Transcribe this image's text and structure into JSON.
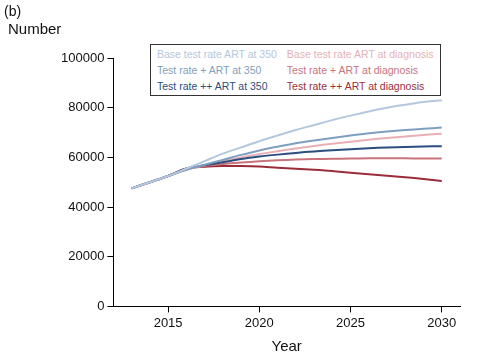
{
  "chart_data": {
    "type": "line",
    "title": "(b)",
    "y_label": "Number",
    "x_label": "Year",
    "x": [
      2013,
      2014,
      2015,
      2016,
      2017,
      2018,
      2019,
      2020,
      2021,
      2022,
      2023,
      2024,
      2025,
      2026,
      2027,
      2028,
      2029,
      2030
    ],
    "series": [
      {
        "name": "Base test rate ART at 350",
        "color": "#b3c8de",
        "values": [
          47500,
          50000,
          52500,
          55500,
          58500,
          61500,
          64000,
          66500,
          68800,
          71000,
          73000,
          75000,
          76800,
          78500,
          80000,
          81200,
          82300,
          83000
        ]
      },
      {
        "name": "Test rate + ART at 350",
        "color": "#7f9fc0",
        "values": [
          47500,
          50000,
          52500,
          55000,
          57000,
          59000,
          61000,
          62800,
          64300,
          65700,
          66800,
          67800,
          68800,
          69700,
          70400,
          71000,
          71500,
          72000
        ]
      },
      {
        "name": "Test rate ++ ART at 350",
        "color": "#2b4e7e",
        "values": [
          47500,
          50000,
          52500,
          55500,
          56800,
          58000,
          59300,
          60300,
          61100,
          61800,
          62400,
          62900,
          63300,
          63700,
          64000,
          64200,
          64400,
          64500
        ]
      },
      {
        "name": "Base test rate ART at diagnosis",
        "color": "#e8b0b5",
        "values": [
          47500,
          50000,
          52500,
          55000,
          56800,
          58500,
          60000,
          61300,
          62500,
          63600,
          64600,
          65500,
          66300,
          67100,
          67800,
          68400,
          69000,
          69500
        ]
      },
      {
        "name": "Test rate + ART at diagnosis",
        "color": "#c9737d",
        "values": [
          47500,
          50000,
          52500,
          55200,
          56500,
          57300,
          57900,
          58400,
          58800,
          59100,
          59300,
          59400,
          59500,
          59600,
          59600,
          59600,
          59500,
          59500
        ]
      },
      {
        "name": "Test rate ++ ART at diagnosis",
        "color": "#9b2d3b",
        "values": [
          47500,
          50000,
          52500,
          55500,
          56200,
          56500,
          56500,
          56300,
          55800,
          55400,
          55000,
          54500,
          53800,
          53200,
          52600,
          52000,
          51300,
          50500
        ]
      }
    ],
    "xlim": [
      2012,
      2031
    ],
    "xticks": [
      2015,
      2020,
      2025,
      2030
    ],
    "ylim": [
      0,
      100000
    ],
    "yticks": [
      0,
      20000,
      40000,
      60000,
      80000,
      100000
    ],
    "grid": false,
    "legend": "top"
  }
}
